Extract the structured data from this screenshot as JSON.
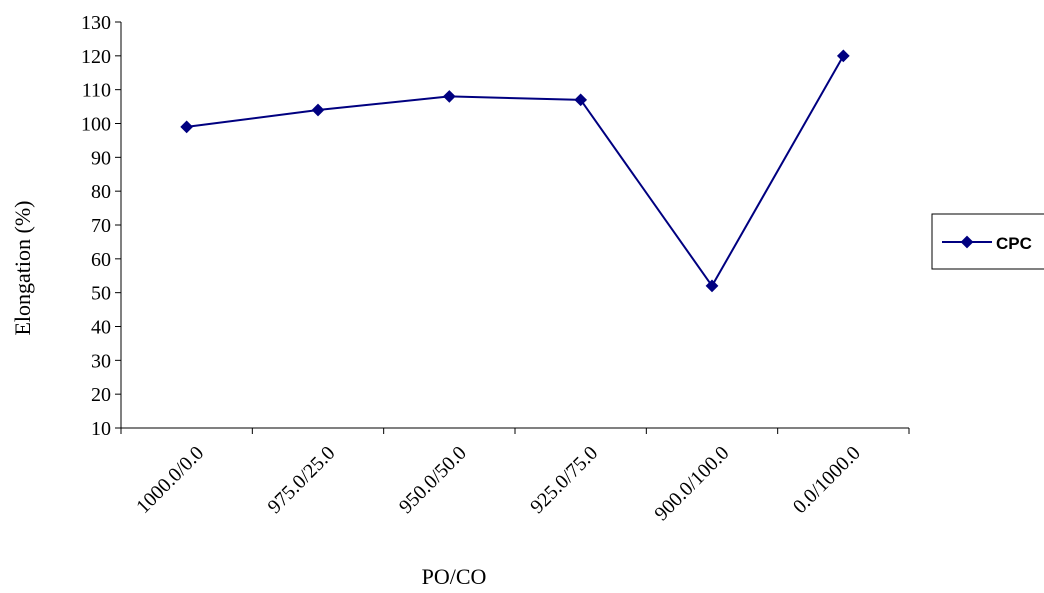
{
  "chart_data": {
    "type": "line",
    "title": "",
    "xlabel": "PO/CO",
    "ylabel": "Elongation (%)",
    "categories": [
      "1000.0/0.0",
      "975.0/25.0",
      "950.0/50.0",
      "925.0/75.0",
      "900.0/100.0",
      "0.0/1000.0"
    ],
    "series": [
      {
        "name": "CPC",
        "values": [
          99,
          104,
          108,
          107,
          52,
          120
        ],
        "color": "#000080",
        "marker": "diamond"
      }
    ],
    "ylim": [
      10,
      130
    ],
    "yticks": [
      10,
      20,
      30,
      40,
      50,
      60,
      70,
      80,
      90,
      100,
      110,
      120,
      130
    ],
    "grid": false,
    "legend_position": "right"
  }
}
